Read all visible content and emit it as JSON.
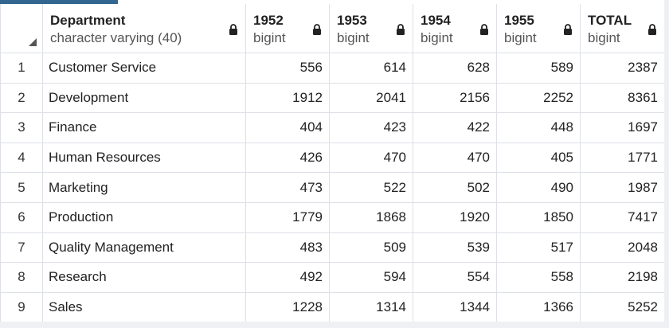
{
  "columns": [
    {
      "name": "Department",
      "type": "character varying (40)"
    },
    {
      "name": "1952",
      "type": "bigint"
    },
    {
      "name": "1953",
      "type": "bigint"
    },
    {
      "name": "1954",
      "type": "bigint"
    },
    {
      "name": "1955",
      "type": "bigint"
    },
    {
      "name": "TOTAL",
      "type": "bigint"
    }
  ],
  "rows": [
    {
      "n": "1",
      "dept": "Customer Service",
      "v": [
        "556",
        "614",
        "628",
        "589",
        "2387"
      ]
    },
    {
      "n": "2",
      "dept": "Development",
      "v": [
        "1912",
        "2041",
        "2156",
        "2252",
        "8361"
      ]
    },
    {
      "n": "3",
      "dept": "Finance",
      "v": [
        "404",
        "423",
        "422",
        "448",
        "1697"
      ]
    },
    {
      "n": "4",
      "dept": "Human Resources",
      "v": [
        "426",
        "470",
        "470",
        "405",
        "1771"
      ]
    },
    {
      "n": "5",
      "dept": "Marketing",
      "v": [
        "473",
        "522",
        "502",
        "490",
        "1987"
      ]
    },
    {
      "n": "6",
      "dept": "Production",
      "v": [
        "1779",
        "1868",
        "1920",
        "1850",
        "7417"
      ]
    },
    {
      "n": "7",
      "dept": "Quality Management",
      "v": [
        "483",
        "509",
        "539",
        "517",
        "2048"
      ]
    },
    {
      "n": "8",
      "dept": "Research",
      "v": [
        "492",
        "594",
        "554",
        "558",
        "2198"
      ]
    },
    {
      "n": "9",
      "dept": "Sales",
      "v": [
        "1228",
        "1314",
        "1344",
        "1366",
        "5252"
      ]
    }
  ],
  "icons": {
    "column_header": "lock-icon",
    "corner": "select-all-triangle-icon"
  },
  "colors": {
    "accent": "#326690",
    "grid_line": "#dde0e6"
  }
}
